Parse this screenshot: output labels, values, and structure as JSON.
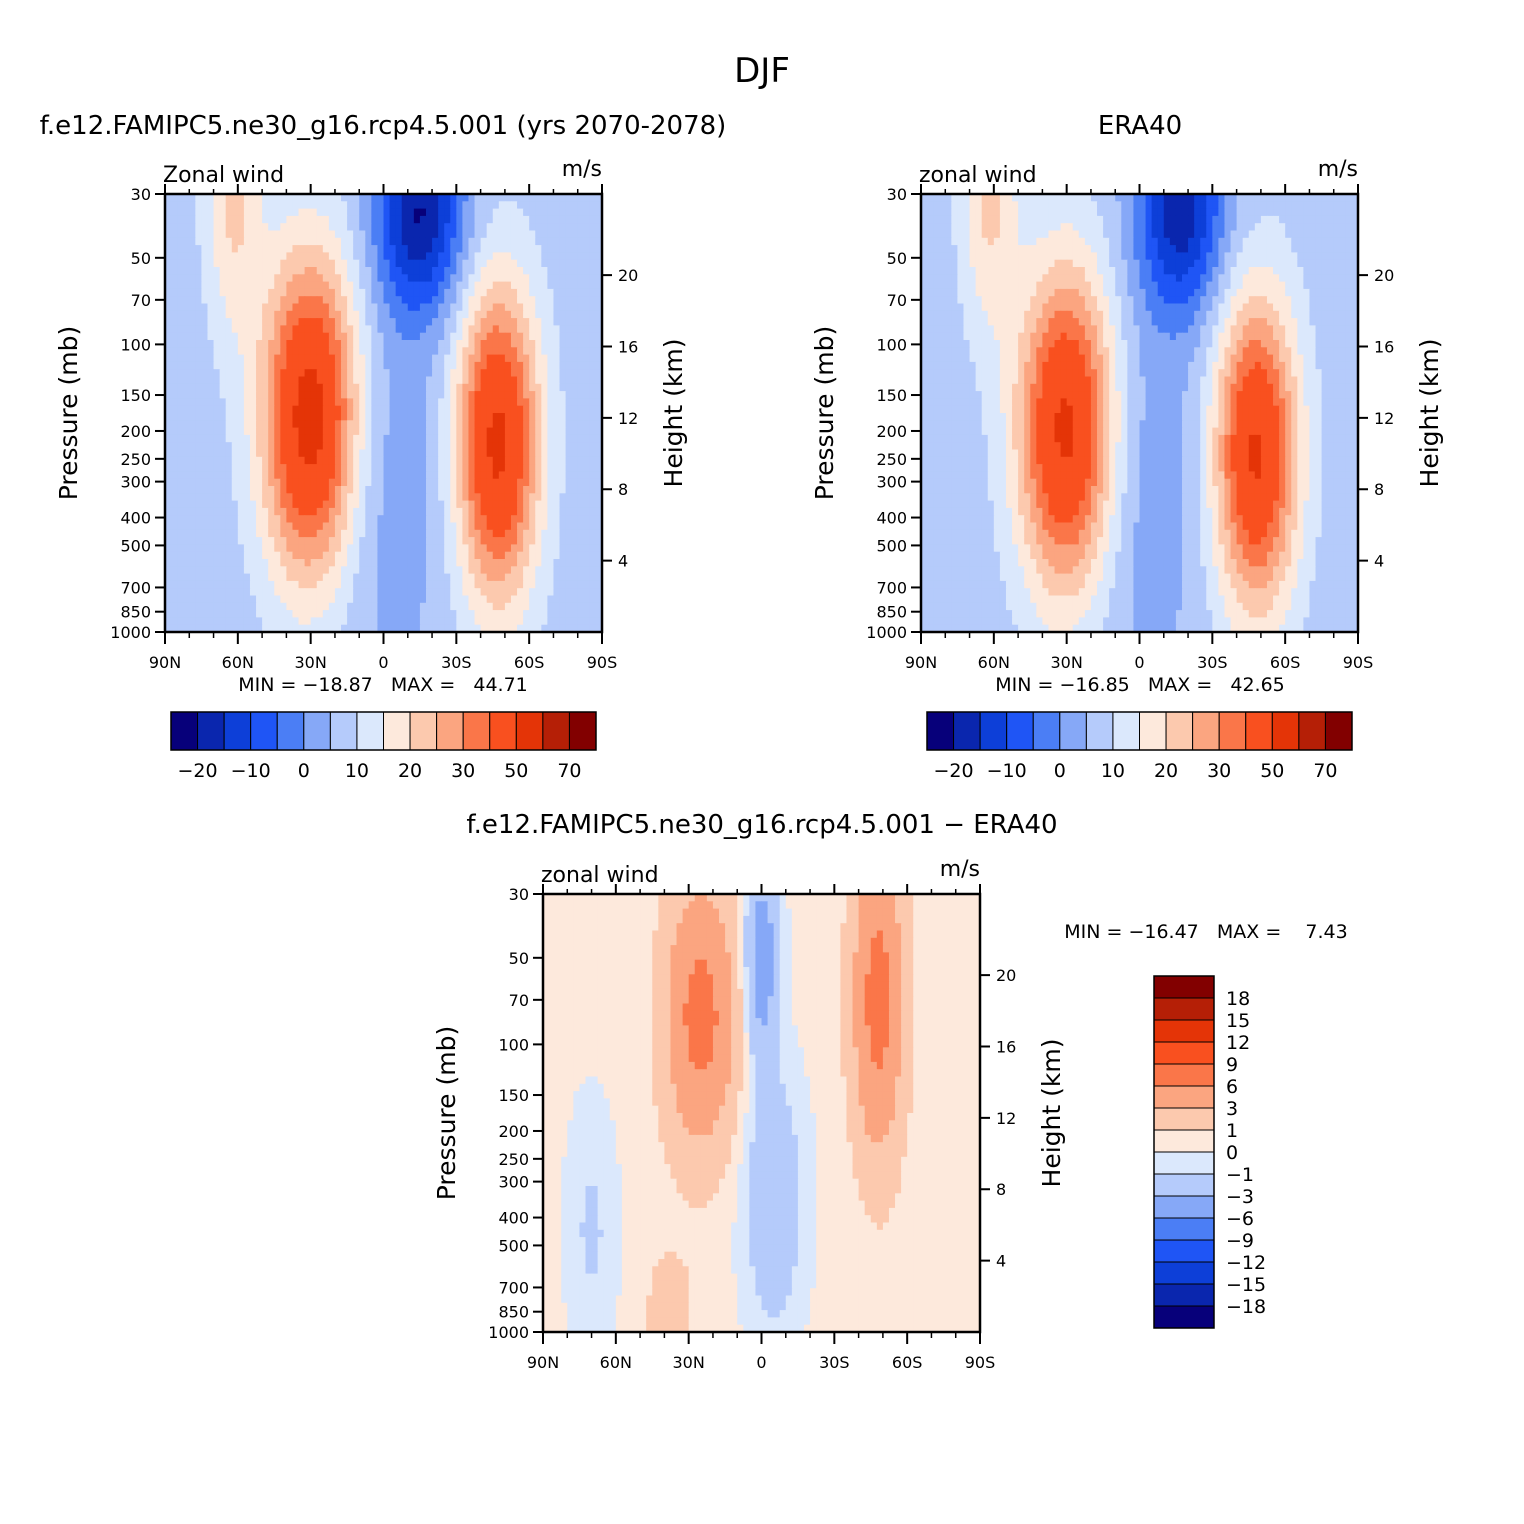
{
  "figure": {
    "title": "DJF"
  },
  "colors": {
    "abs_palette": [
      "#07007a",
      "#0a26ae",
      "#0d3fd8",
      "#1f55f5",
      "#4b7ef5",
      "#86a8f7",
      "#b5cbfb",
      "#dbe8fc",
      "#fde9dc",
      "#fcc9ae",
      "#fba580",
      "#fa7649",
      "#f9501f",
      "#e43407",
      "#b51f06",
      "#820000"
    ],
    "diff_palette": [
      "#07007a",
      "#0a26ae",
      "#0d3fd8",
      "#1f55f5",
      "#4b7ef5",
      "#86a8f7",
      "#b5cbfb",
      "#dbe8fc",
      "#fde9dc",
      "#fcc9ae",
      "#fba580",
      "#fa7649",
      "#f9501f",
      "#e43407",
      "#b51f06",
      "#820000"
    ]
  },
  "chart_data": [
    {
      "id": "model",
      "type": "contour",
      "title": "f.e12.FAMIPC5.ne30_g16.rcp4.5.001 (yrs 2070-2078)",
      "left_label": "Zonal wind",
      "right_label": "m/s",
      "xlabel": "",
      "ylabel": "Pressure (mb)",
      "ylabel_right": "Height (km)",
      "x_ticks": [
        "90N",
        "60N",
        "30N",
        "0",
        "30S",
        "60S",
        "90S"
      ],
      "y_ticks": [
        "30",
        "50",
        "70",
        "100",
        "150",
        "200",
        "250",
        "300",
        "400",
        "500",
        "700",
        "850",
        "1000"
      ],
      "y_right_ticks": [
        "20",
        "16",
        "12",
        "8",
        "4"
      ],
      "xlim": [
        90,
        -90
      ],
      "ylim_pressure": [
        1000,
        30
      ],
      "min_text": "MIN = −18.87   MAX =   44.71",
      "min": -18.87,
      "max": 44.71,
      "colorbar_orientation": "horizontal",
      "colorbar_labels": [
        "−20",
        "−10",
        "0",
        "10",
        "20",
        "30",
        "50",
        "70"
      ],
      "levels": [
        -25,
        -20,
        -15,
        -10,
        -5,
        0,
        5,
        10,
        15,
        20,
        25,
        30,
        40,
        50,
        60,
        70
      ],
      "jets": [
        {
          "lat": 30,
          "p": 180,
          "speed": 44.7
        },
        {
          "lat": -47,
          "p": 220,
          "speed": 42
        }
      ],
      "minimum": {
        "lat": -15,
        "p": 35,
        "speed": -18.9
      }
    },
    {
      "id": "obs",
      "type": "contour",
      "title": "ERA40",
      "left_label": "zonal wind",
      "right_label": "m/s",
      "xlabel": "",
      "ylabel": "Pressure (mb)",
      "ylabel_right": "Height (km)",
      "x_ticks": [
        "90N",
        "60N",
        "30N",
        "0",
        "30S",
        "60S",
        "90S"
      ],
      "y_ticks": [
        "30",
        "50",
        "70",
        "100",
        "150",
        "200",
        "250",
        "300",
        "400",
        "500",
        "700",
        "850",
        "1000"
      ],
      "y_right_ticks": [
        "20",
        "16",
        "12",
        "8",
        "4"
      ],
      "xlim": [
        90,
        -90
      ],
      "ylim_pressure": [
        1000,
        30
      ],
      "min_text": "MIN = −16.85   MAX =   42.65",
      "min": -16.85,
      "max": 42.65,
      "colorbar_orientation": "horizontal",
      "colorbar_labels": [
        "−20",
        "−10",
        "0",
        "10",
        "20",
        "30",
        "50",
        "70"
      ],
      "levels": [
        -25,
        -20,
        -15,
        -10,
        -5,
        0,
        5,
        10,
        15,
        20,
        25,
        30,
        40,
        50,
        60,
        70
      ],
      "jets": [
        {
          "lat": 30,
          "p": 200,
          "speed": 42.6
        },
        {
          "lat": -48,
          "p": 240,
          "speed": 41
        }
      ],
      "minimum": {
        "lat": -17,
        "p": 35,
        "speed": -16.9
      }
    },
    {
      "id": "diff",
      "type": "contour",
      "title": "f.e12.FAMIPC5.ne30_g16.rcp4.5.001 − ERA40",
      "left_label": "zonal wind",
      "right_label": "m/s",
      "xlabel": "",
      "ylabel": "Pressure (mb)",
      "ylabel_right": "Height (km)",
      "x_ticks": [
        "90N",
        "60N",
        "30N",
        "0",
        "30S",
        "60S",
        "90S"
      ],
      "y_ticks": [
        "30",
        "50",
        "70",
        "100",
        "150",
        "200",
        "250",
        "300",
        "400",
        "500",
        "700",
        "850",
        "1000"
      ],
      "y_right_ticks": [
        "20",
        "16",
        "12",
        "8",
        "4"
      ],
      "xlim": [
        90,
        -90
      ],
      "ylim_pressure": [
        1000,
        30
      ],
      "min_text": "MIN = −16.47   MAX =    7.43",
      "min": -16.47,
      "max": 7.43,
      "colorbar_orientation": "vertical",
      "colorbar_labels": [
        "18",
        "15",
        "12",
        "9",
        "6",
        "3",
        "1",
        "0",
        "−1",
        "−3",
        "−6",
        "−9",
        "−12",
        "−15",
        "−18"
      ],
      "levels": [
        -18,
        -15,
        -12,
        -9,
        -6,
        -3,
        -1,
        0,
        1,
        3,
        6,
        9,
        12,
        15,
        18
      ]
    }
  ]
}
